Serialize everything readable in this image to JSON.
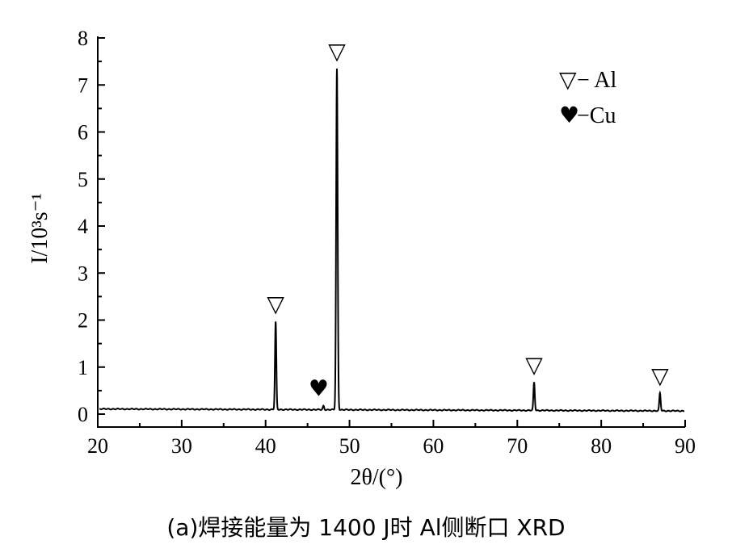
{
  "chart_data": {
    "type": "line",
    "xlabel": "2θ/(°)",
    "ylabel": "I/10³s⁻¹",
    "xlim": [
      20,
      90
    ],
    "ylim": [
      0,
      8
    ],
    "x_ticks": [
      "20",
      "30",
      "40",
      "50",
      "60",
      "70",
      "80",
      "90"
    ],
    "y_ticks": [
      "0",
      "1",
      "2",
      "3",
      "4",
      "5",
      "6",
      "7",
      "8"
    ],
    "grid": false,
    "legend_position": "top-right",
    "legend": [
      {
        "symbol": "▽",
        "label": "− Al",
        "phase": "Al"
      },
      {
        "symbol": "♥",
        "label": "−Cu",
        "phase": "Cu"
      }
    ],
    "peaks": [
      {
        "x": 41.2,
        "y": 1.97,
        "phase": "Al",
        "symbol": "▽"
      },
      {
        "x": 46.9,
        "y": 0.18,
        "phase": "Cu",
        "symbol": "♥"
      },
      {
        "x": 48.5,
        "y": 7.35,
        "phase": "Al",
        "symbol": "▽"
      },
      {
        "x": 72.0,
        "y": 0.68,
        "phase": "Al",
        "symbol": "▽"
      },
      {
        "x": 87.0,
        "y": 0.45,
        "phase": "Al",
        "symbol": "▽"
      }
    ]
  },
  "caption": "(a)焊接能量为 1400 J时 Al侧断口 XRD"
}
